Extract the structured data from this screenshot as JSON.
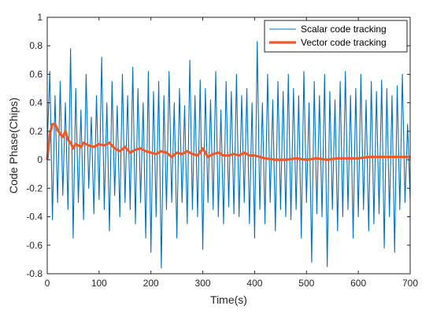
{
  "chart_data": {
    "type": "line",
    "title": "",
    "xlabel": "Time(s)",
    "ylabel": "Code Phase(Chips)",
    "xlim": [
      0,
      700
    ],
    "ylim": [
      -0.8,
      1
    ],
    "xticks": [
      0,
      100,
      200,
      300,
      400,
      500,
      600,
      700
    ],
    "yticks": [
      -0.8,
      -0.6,
      -0.4,
      -0.2,
      0,
      0.2,
      0.4,
      0.6,
      0.8,
      1
    ],
    "xtick_labels": [
      "0",
      "100",
      "200",
      "300",
      "400",
      "500",
      "600",
      "700"
    ],
    "ytick_labels": [
      "-0.8",
      "-0.6",
      "-0.4",
      "-0.2",
      "0",
      "0.2",
      "0.4",
      "0.6",
      "0.8",
      "1"
    ],
    "grid": false,
    "legend_position": "top-right",
    "colors": {
      "scalar": "#0072BD",
      "vector": "#F05A28"
    },
    "series": [
      {
        "name": "Scalar code tracking",
        "color": "#0072BD",
        "x": [
          0,
          5,
          10,
          15,
          20,
          25,
          30,
          35,
          40,
          45,
          50,
          55,
          60,
          65,
          70,
          75,
          80,
          85,
          90,
          95,
          100,
          105,
          110,
          115,
          120,
          125,
          130,
          135,
          140,
          145,
          150,
          155,
          160,
          165,
          170,
          175,
          180,
          185,
          190,
          195,
          200,
          205,
          210,
          215,
          220,
          225,
          230,
          235,
          240,
          245,
          250,
          255,
          260,
          265,
          270,
          275,
          280,
          285,
          290,
          295,
          300,
          305,
          310,
          315,
          320,
          325,
          330,
          335,
          340,
          345,
          350,
          355,
          360,
          365,
          370,
          375,
          380,
          385,
          390,
          395,
          400,
          405,
          410,
          415,
          420,
          425,
          430,
          435,
          440,
          445,
          450,
          455,
          460,
          465,
          470,
          475,
          480,
          485,
          490,
          495,
          500,
          505,
          510,
          515,
          520,
          525,
          530,
          535,
          540,
          545,
          550,
          555,
          560,
          565,
          570,
          575,
          580,
          585,
          590,
          595,
          600,
          605,
          610,
          615,
          620,
          625,
          630,
          635,
          640,
          645,
          650,
          655,
          660,
          665,
          670,
          675,
          680,
          685,
          690,
          695,
          700
        ],
        "y": [
          0.1,
          0.62,
          -0.42,
          0.45,
          -0.3,
          0.55,
          -0.25,
          0.4,
          -0.35,
          0.78,
          -0.55,
          0.5,
          -0.3,
          0.35,
          -0.42,
          0.6,
          -0.2,
          0.3,
          -0.38,
          0.45,
          -0.28,
          0.72,
          -0.35,
          0.4,
          -0.5,
          0.55,
          -0.25,
          0.38,
          -0.4,
          0.6,
          -0.3,
          0.45,
          -0.35,
          0.65,
          -0.45,
          0.5,
          -0.3,
          0.4,
          -0.55,
          0.62,
          -0.65,
          0.48,
          -0.4,
          0.55,
          -0.76,
          0.45,
          -0.35,
          0.62,
          -0.3,
          0.4,
          -0.55,
          0.5,
          -0.3,
          0.38,
          -0.45,
          0.7,
          -0.35,
          0.45,
          -0.4,
          0.56,
          -0.63,
          0.5,
          -0.3,
          0.42,
          -0.35,
          0.62,
          -0.4,
          0.35,
          -0.45,
          0.55,
          -0.33,
          0.48,
          -0.38,
          0.6,
          -0.4,
          0.45,
          -0.3,
          0.5,
          -0.45,
          0.4,
          -0.55,
          0.83,
          -0.35,
          0.4,
          -0.45,
          0.6,
          -0.3,
          0.42,
          -0.5,
          0.55,
          -0.35,
          0.48,
          -0.4,
          0.6,
          -0.42,
          0.5,
          -0.35,
          0.45,
          -0.55,
          0.62,
          -0.3,
          0.4,
          -0.72,
          0.55,
          -0.38,
          0.45,
          -0.4,
          0.6,
          -0.75,
          0.48,
          -0.35,
          0.42,
          -0.5,
          0.55,
          -0.4,
          0.62,
          -0.35,
          0.45,
          -0.55,
          0.5,
          -0.4,
          0.6,
          -0.35,
          0.42,
          -0.5,
          0.55,
          -0.45,
          0.48,
          -0.38,
          0.56,
          -0.62,
          0.5,
          -0.4,
          0.45,
          -0.65,
          0.52,
          -0.35,
          0.6,
          -0.3,
          0.25,
          -0.28
        ]
      },
      {
        "name": "Vector code tracking",
        "color": "#F05A28",
        "x": [
          0,
          5,
          10,
          15,
          20,
          25,
          30,
          35,
          40,
          45,
          50,
          55,
          60,
          65,
          70,
          80,
          90,
          100,
          110,
          120,
          130,
          140,
          150,
          160,
          170,
          180,
          190,
          200,
          210,
          220,
          230,
          240,
          250,
          260,
          270,
          280,
          290,
          300,
          310,
          320,
          330,
          340,
          350,
          360,
          370,
          380,
          390,
          400,
          420,
          440,
          460,
          480,
          500,
          520,
          540,
          560,
          580,
          600,
          620,
          640,
          660,
          680,
          700
        ],
        "y": [
          0.0,
          0.18,
          0.25,
          0.25,
          0.21,
          0.18,
          0.16,
          0.2,
          0.14,
          0.12,
          0.08,
          0.11,
          0.1,
          0.09,
          0.12,
          0.1,
          0.09,
          0.11,
          0.1,
          0.12,
          0.08,
          0.06,
          0.09,
          0.05,
          0.07,
          0.08,
          0.06,
          0.05,
          0.04,
          0.06,
          0.05,
          0.02,
          0.05,
          0.04,
          0.06,
          0.04,
          0.03,
          0.08,
          0.02,
          0.04,
          0.05,
          0.03,
          0.03,
          0.04,
          0.03,
          0.05,
          0.03,
          0.03,
          0.01,
          0.0,
          0.0,
          0.01,
          0.0,
          0.01,
          0.0,
          0.01,
          0.01,
          0.01,
          0.02,
          0.02,
          0.02,
          0.02,
          0.02
        ]
      }
    ]
  }
}
